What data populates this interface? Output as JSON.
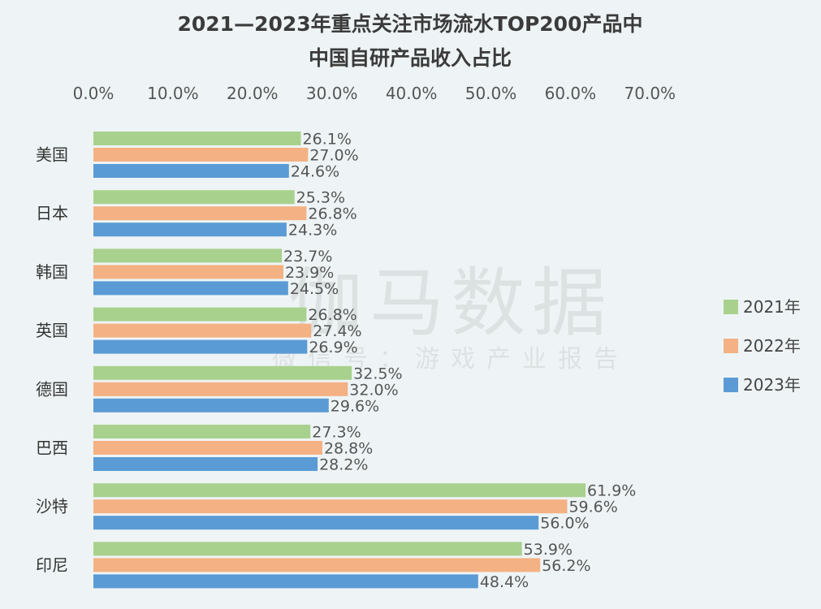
{
  "watermark": {
    "main": "伽马数据",
    "sub": "微信号：游戏产业报告"
  },
  "chart_data": {
    "type": "bar",
    "orientation": "horizontal",
    "title_line1": "2021—2023年重点关注市场流水TOP200产品中",
    "title_line2": "中国自研产品收入占比",
    "categories": [
      "美国",
      "日本",
      "韩国",
      "英国",
      "德国",
      "巴西",
      "沙特",
      "印尼"
    ],
    "series": [
      {
        "name": "2021年",
        "color": "#a9d18e",
        "values": [
          26.1,
          25.3,
          23.7,
          26.8,
          32.5,
          27.3,
          61.9,
          53.9
        ]
      },
      {
        "name": "2022年",
        "color": "#f4b183",
        "values": [
          27.0,
          26.8,
          23.9,
          27.4,
          32.0,
          28.8,
          59.6,
          56.2
        ]
      },
      {
        "name": "2023年",
        "color": "#5b9bd5",
        "values": [
          24.6,
          24.3,
          24.5,
          26.9,
          29.6,
          28.2,
          56.0,
          48.4
        ]
      }
    ],
    "value_format": "percent_1dp",
    "xlim": [
      0,
      70
    ],
    "x_ticks": [
      "0.0%",
      "10.0%",
      "20.0%",
      "30.0%",
      "40.0%",
      "50.0%",
      "60.0%",
      "70.0%"
    ],
    "x_tick_values": [
      0,
      10,
      20,
      30,
      40,
      50,
      60,
      70
    ],
    "axis_position": "top",
    "legend_position": "right",
    "grid": false
  }
}
